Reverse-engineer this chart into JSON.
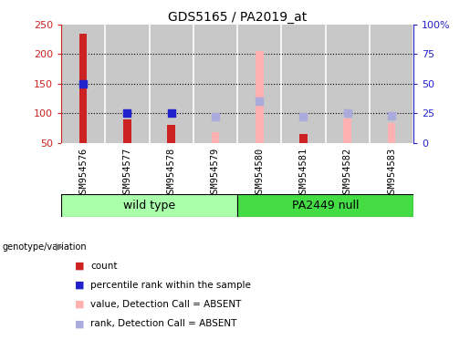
{
  "title": "GDS5165 / PA2019_at",
  "samples": [
    "GSM954576",
    "GSM954577",
    "GSM954578",
    "GSM954579",
    "GSM954580",
    "GSM954581",
    "GSM954582",
    "GSM954583"
  ],
  "count_values": [
    235,
    90,
    80,
    null,
    null,
    65,
    null,
    null
  ],
  "rank_pct": [
    50,
    25,
    25,
    null,
    null,
    null,
    null,
    null
  ],
  "absent_value": [
    null,
    null,
    null,
    68,
    205,
    null,
    92,
    83
  ],
  "absent_rank_pct": [
    null,
    null,
    null,
    22,
    35,
    22,
    25,
    23
  ],
  "ylim_left": [
    50,
    250
  ],
  "ylim_right": [
    0,
    100
  ],
  "left_ticks": [
    50,
    100,
    150,
    200,
    250
  ],
  "right_ticks": [
    0,
    25,
    50,
    75,
    100
  ],
  "right_tick_labels": [
    "0",
    "25",
    "50",
    "75",
    "100%"
  ],
  "grid_values": [
    100,
    150,
    200
  ],
  "count_color": "#CC2222",
  "rank_color": "#2222CC",
  "absent_val_color": "#FFB0B0",
  "absent_rank_color": "#AAAADD",
  "plot_bg_color": "#C8C8C8",
  "sample_bg_color": "#C8C8C8",
  "group_wt_color": "#AAFFAA",
  "group_pa_color": "#44DD44",
  "bar_width": 0.18,
  "marker_size": 36
}
